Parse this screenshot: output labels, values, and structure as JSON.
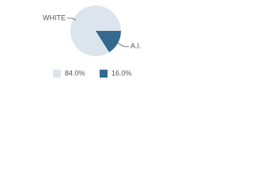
{
  "chart_data": {
    "type": "pie",
    "categories": [
      "WHITE",
      "A.I."
    ],
    "values": [
      84,
      16
    ],
    "value_labels": [
      "84.0%",
      "16.0%"
    ],
    "colors": [
      "#dce5ed",
      "#336a8e"
    ]
  }
}
